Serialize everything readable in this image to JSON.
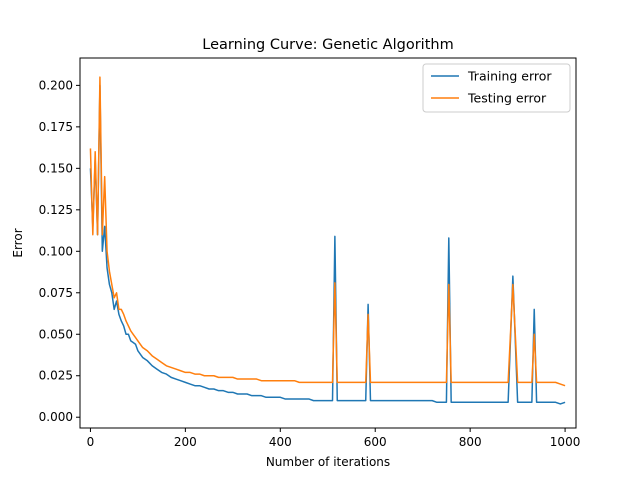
{
  "chart_data": {
    "type": "line",
    "title": "Learning Curve: Genetic Algorithm",
    "xlabel": "Number of iterations",
    "ylabel": "Error",
    "xlim": [
      -22,
      1023
    ],
    "ylim": [
      -0.0065,
      0.2165
    ],
    "xticks": [
      0,
      200,
      400,
      600,
      800,
      1000
    ],
    "xtick_labels": [
      "0",
      "200",
      "400",
      "600",
      "800",
      "1000"
    ],
    "yticks": [
      0.0,
      0.025,
      0.05,
      0.075,
      0.1,
      0.125,
      0.15,
      0.175,
      0.2
    ],
    "ytick_labels": [
      "0.000",
      "0.025",
      "0.050",
      "0.075",
      "0.100",
      "0.125",
      "0.150",
      "0.175",
      "0.200"
    ],
    "grid": false,
    "legend_position": "top-right",
    "series": [
      {
        "name": "Training error",
        "color": "#1f77b4",
        "x": [
          0,
          5,
          10,
          15,
          20,
          25,
          30,
          35,
          40,
          45,
          50,
          55,
          60,
          65,
          70,
          75,
          80,
          85,
          90,
          95,
          100,
          110,
          120,
          130,
          140,
          150,
          160,
          170,
          180,
          190,
          200,
          210,
          220,
          230,
          240,
          250,
          260,
          270,
          280,
          290,
          300,
          310,
          320,
          330,
          340,
          350,
          360,
          370,
          380,
          390,
          400,
          410,
          420,
          430,
          440,
          450,
          460,
          470,
          480,
          490,
          500,
          510,
          515,
          520,
          530,
          540,
          550,
          560,
          570,
          580,
          585,
          590,
          600,
          610,
          620,
          630,
          640,
          650,
          660,
          670,
          680,
          690,
          700,
          710,
          720,
          730,
          740,
          750,
          755,
          760,
          770,
          780,
          790,
          800,
          810,
          820,
          830,
          840,
          850,
          860,
          870,
          880,
          890,
          900,
          910,
          920,
          930,
          935,
          940,
          950,
          960,
          970,
          980,
          990,
          1000
        ],
        "values": [
          0.15,
          0.115,
          0.155,
          0.11,
          0.2,
          0.1,
          0.115,
          0.09,
          0.08,
          0.075,
          0.065,
          0.07,
          0.062,
          0.058,
          0.055,
          0.05,
          0.05,
          0.046,
          0.045,
          0.044,
          0.04,
          0.036,
          0.034,
          0.031,
          0.029,
          0.027,
          0.026,
          0.024,
          0.023,
          0.022,
          0.021,
          0.02,
          0.019,
          0.019,
          0.018,
          0.017,
          0.017,
          0.016,
          0.016,
          0.015,
          0.015,
          0.014,
          0.014,
          0.014,
          0.013,
          0.013,
          0.013,
          0.012,
          0.012,
          0.012,
          0.012,
          0.011,
          0.011,
          0.011,
          0.011,
          0.011,
          0.011,
          0.01,
          0.01,
          0.01,
          0.01,
          0.01,
          0.109,
          0.01,
          0.01,
          0.01,
          0.01,
          0.01,
          0.01,
          0.01,
          0.068,
          0.01,
          0.01,
          0.01,
          0.01,
          0.01,
          0.01,
          0.01,
          0.01,
          0.01,
          0.01,
          0.01,
          0.01,
          0.01,
          0.01,
          0.009,
          0.009,
          0.009,
          0.108,
          0.009,
          0.009,
          0.009,
          0.009,
          0.009,
          0.009,
          0.009,
          0.009,
          0.009,
          0.009,
          0.009,
          0.009,
          0.009,
          0.085,
          0.009,
          0.009,
          0.009,
          0.009,
          0.065,
          0.009,
          0.009,
          0.009,
          0.009,
          0.009,
          0.008,
          0.009
        ]
      },
      {
        "name": "Testing error",
        "color": "#ff7f0e",
        "x": [
          0,
          5,
          10,
          15,
          20,
          25,
          30,
          35,
          40,
          45,
          50,
          55,
          60,
          65,
          70,
          75,
          80,
          85,
          90,
          95,
          100,
          110,
          120,
          130,
          140,
          150,
          160,
          170,
          180,
          190,
          200,
          210,
          220,
          230,
          240,
          250,
          260,
          270,
          280,
          290,
          300,
          310,
          320,
          330,
          340,
          350,
          360,
          370,
          380,
          390,
          400,
          410,
          420,
          430,
          440,
          450,
          460,
          470,
          480,
          490,
          500,
          510,
          515,
          520,
          530,
          540,
          550,
          560,
          570,
          580,
          585,
          590,
          600,
          610,
          620,
          630,
          640,
          650,
          660,
          670,
          680,
          690,
          700,
          710,
          720,
          730,
          740,
          750,
          755,
          760,
          770,
          780,
          790,
          800,
          810,
          820,
          830,
          840,
          850,
          860,
          870,
          880,
          890,
          900,
          910,
          920,
          930,
          935,
          940,
          950,
          960,
          970,
          980,
          990,
          1000
        ],
        "values": [
          0.162,
          0.11,
          0.16,
          0.11,
          0.205,
          0.11,
          0.145,
          0.1,
          0.088,
          0.08,
          0.072,
          0.075,
          0.065,
          0.065,
          0.062,
          0.058,
          0.055,
          0.052,
          0.05,
          0.048,
          0.046,
          0.042,
          0.04,
          0.037,
          0.035,
          0.033,
          0.031,
          0.03,
          0.029,
          0.028,
          0.027,
          0.027,
          0.026,
          0.026,
          0.025,
          0.025,
          0.025,
          0.024,
          0.024,
          0.024,
          0.024,
          0.023,
          0.023,
          0.023,
          0.023,
          0.023,
          0.022,
          0.022,
          0.022,
          0.022,
          0.022,
          0.022,
          0.022,
          0.022,
          0.021,
          0.021,
          0.021,
          0.021,
          0.021,
          0.021,
          0.021,
          0.021,
          0.081,
          0.021,
          0.021,
          0.021,
          0.021,
          0.021,
          0.021,
          0.021,
          0.062,
          0.021,
          0.021,
          0.021,
          0.021,
          0.021,
          0.021,
          0.021,
          0.021,
          0.021,
          0.021,
          0.021,
          0.021,
          0.021,
          0.021,
          0.021,
          0.021,
          0.021,
          0.08,
          0.021,
          0.021,
          0.021,
          0.021,
          0.021,
          0.021,
          0.021,
          0.021,
          0.021,
          0.021,
          0.021,
          0.021,
          0.021,
          0.08,
          0.021,
          0.021,
          0.021,
          0.021,
          0.05,
          0.021,
          0.021,
          0.021,
          0.021,
          0.021,
          0.02,
          0.019
        ]
      }
    ]
  }
}
